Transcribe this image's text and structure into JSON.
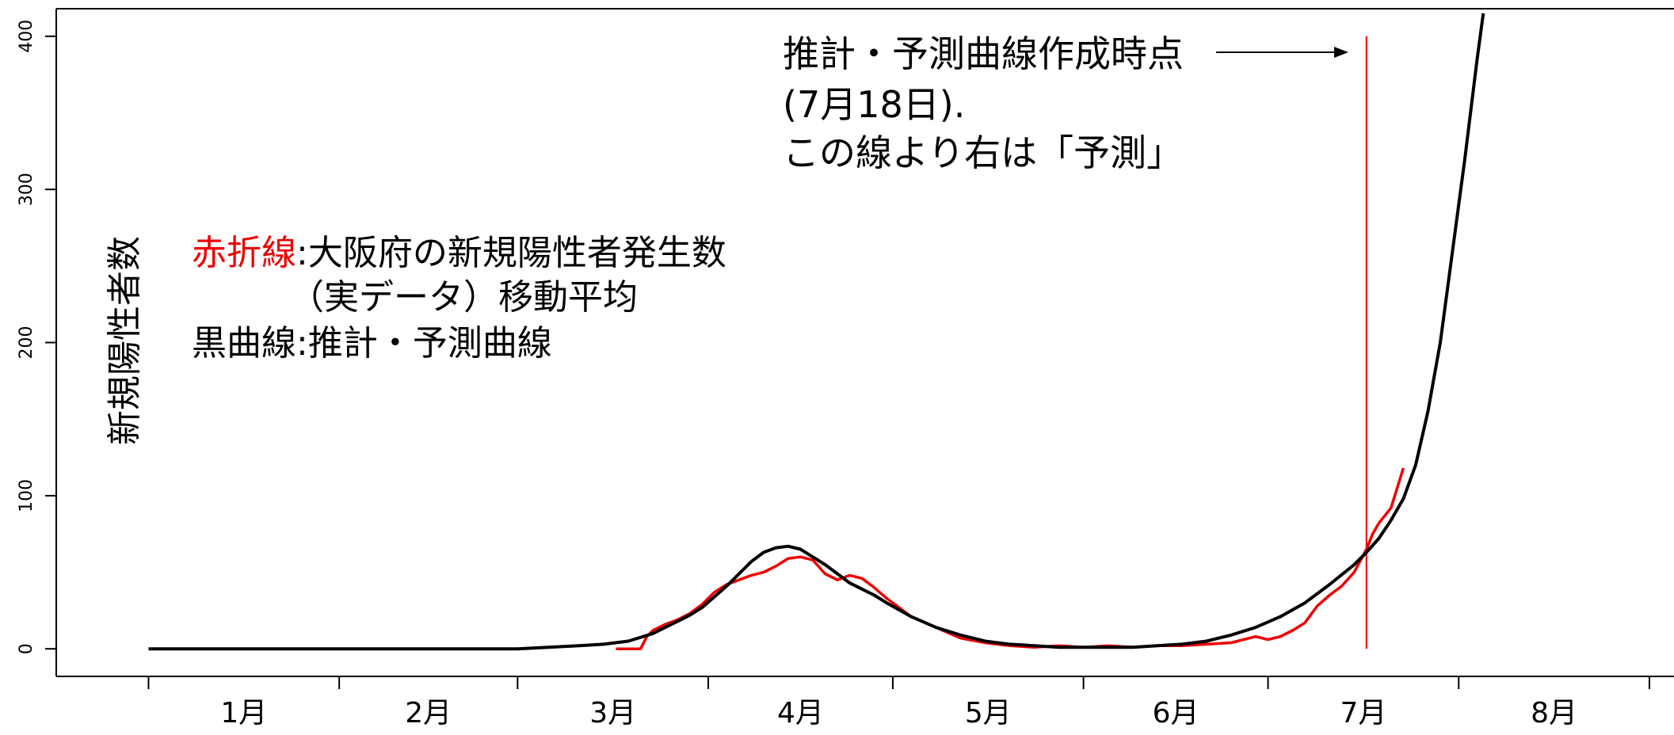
{
  "chart_data": {
    "type": "line",
    "ylabel": "新規陽性者数",
    "y_ticks": [
      "0",
      "100",
      "200",
      "300",
      "400"
    ],
    "ylim": [
      -18,
      418
    ],
    "x_ticks": [
      "1月",
      "2月",
      "3月",
      "4月",
      "5月",
      "6月",
      "7月",
      "8月"
    ],
    "x_unit": "day index (0 = Jan 1)",
    "xlim": [
      -15,
      248
    ],
    "grid": false,
    "legend": {
      "line1_colored": "赤折線",
      "line1_rest": ":大阪府の新規陽性者発生数",
      "line2": "（実データ）移動平均",
      "line3": "黒曲線:推計・予測曲線"
    },
    "annotation": {
      "line1": "推計・予測曲線作成時点",
      "line2": "(7月18日).",
      "line3": "この線より右は「予測」"
    },
    "colors": {
      "actual": "#ee0000",
      "fitted": "#000000",
      "marker": "#ee0000"
    },
    "marker_x": 198,
    "series": [
      {
        "name": "赤折線",
        "color": "#ee0000",
        "x": [
          76,
          80,
          81,
          82,
          84,
          86,
          88,
          90,
          92,
          94,
          96,
          98,
          100,
          102,
          104,
          106,
          108,
          110,
          112,
          114,
          116,
          118,
          120,
          124,
          128,
          132,
          136,
          140,
          144,
          148,
          152,
          156,
          160,
          164,
          168,
          172,
          176,
          180,
          182,
          184,
          186,
          188,
          190,
          192,
          194,
          196,
          198,
          199,
          200,
          202,
          204
        ],
        "y": [
          0,
          0,
          8,
          12,
          16,
          19,
          23,
          29,
          37,
          42,
          45,
          48,
          50,
          54,
          59,
          60,
          58,
          49,
          45,
          48,
          46,
          40,
          33,
          21,
          14,
          7,
          4,
          2,
          1,
          2,
          1,
          2,
          1,
          2,
          2,
          3,
          4,
          8,
          6,
          8,
          12,
          17,
          28,
          35,
          41,
          50,
          65,
          75,
          82,
          92,
          118
        ]
      },
      {
        "name": "黒曲線",
        "color": "#000000",
        "x": [
          0,
          30,
          60,
          70,
          74,
          78,
          82,
          84,
          86,
          88,
          90,
          92,
          94,
          96,
          98,
          100,
          102,
          104,
          106,
          108,
          110,
          112,
          114,
          116,
          118,
          120,
          124,
          128,
          132,
          136,
          140,
          144,
          148,
          152,
          156,
          160,
          164,
          168,
          172,
          176,
          180,
          184,
          188,
          192,
          196,
          198,
          200,
          202,
          204,
          206,
          208,
          210,
          212,
          214,
          216,
          217
        ],
        "y": [
          0,
          0,
          0,
          2,
          3,
          5,
          10,
          14,
          18,
          22,
          27,
          34,
          41,
          49,
          57,
          63,
          66,
          67,
          65,
          60,
          55,
          49,
          43,
          39,
          35,
          30,
          21,
          14,
          9,
          5,
          3,
          2,
          1,
          1,
          1,
          1,
          2,
          3,
          5,
          9,
          14,
          21,
          30,
          42,
          55,
          63,
          72,
          84,
          98,
          120,
          155,
          200,
          260,
          320,
          385,
          415
        ]
      }
    ]
  }
}
